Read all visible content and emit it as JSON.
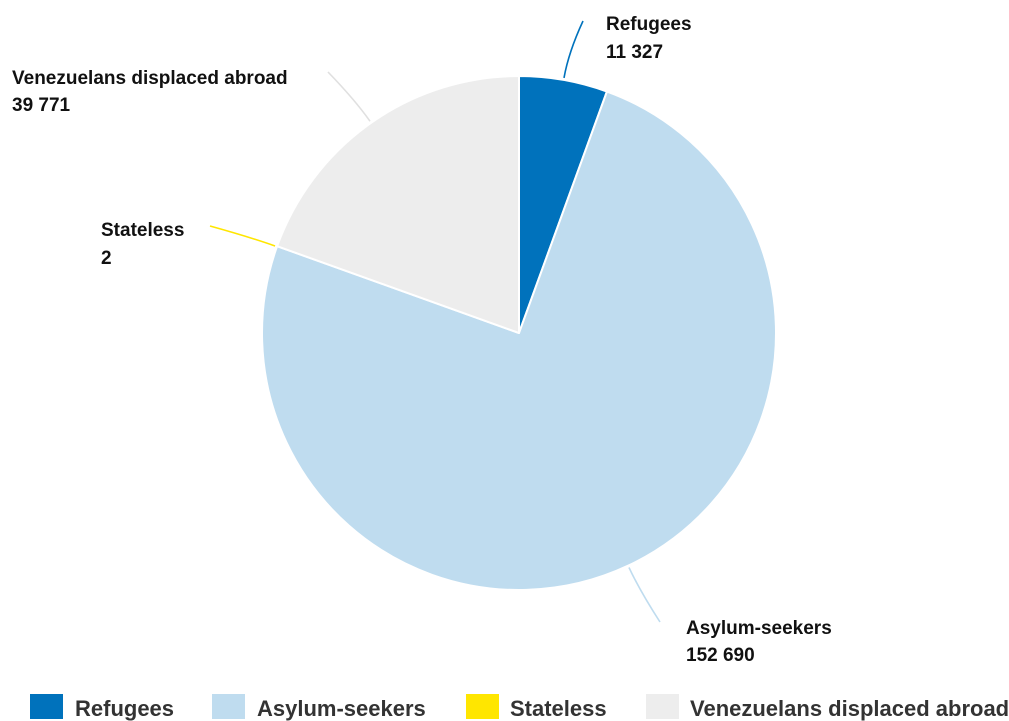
{
  "chart_data": {
    "type": "pie",
    "title": "",
    "start_angle": "top",
    "direction": "clockwise",
    "slices": [
      {
        "name": "Refugees",
        "value": 11327,
        "value_label": "11 327",
        "color": "#0072bc",
        "leader_color": "#0072bc"
      },
      {
        "name": "Asylum-seekers",
        "value": 152690,
        "value_label": "152 690",
        "color": "#bfdcef",
        "leader_color": "#bfdcef"
      },
      {
        "name": "Stateless",
        "value": 2,
        "value_label": "2",
        "color": "#ffe600",
        "leader_color": "#ffe600"
      },
      {
        "name": "Venezuelans displaced abroad",
        "value": 39771,
        "value_label": "39 771",
        "color": "#ededed",
        "leader_color": "#e0e0e0"
      }
    ],
    "legend": {
      "position": "bottom",
      "entries": [
        "Refugees",
        "Asylum-seekers",
        "Stateless",
        "Venezuelans displaced abroad"
      ]
    }
  }
}
